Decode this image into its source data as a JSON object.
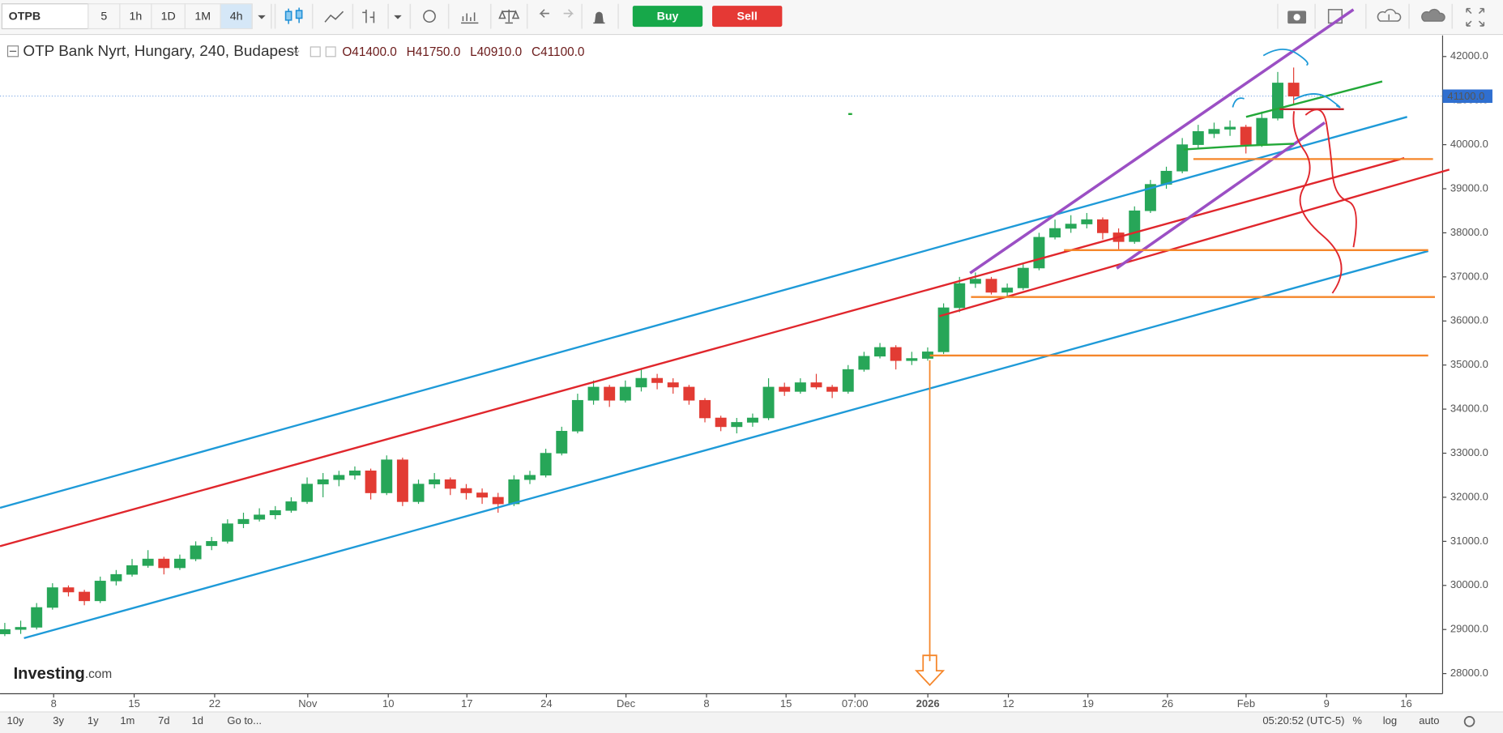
{
  "toolbar": {
    "symbol": "OTPB",
    "intervals": [
      "5",
      "1h",
      "1D",
      "1M",
      "4h"
    ],
    "buy": "Buy",
    "sell": "Sell"
  },
  "chart_data": {
    "type": "candlestick",
    "title": "OTP Bank Nyrt, Hungary, 240, Budapest",
    "ohlc_labels": [
      "O41400.0",
      "H41750.0",
      "L40910.0",
      "C41100.0"
    ],
    "last_price_label": "41100.0",
    "x": [
      0,
      1,
      2,
      3,
      4,
      5,
      6,
      7,
      8,
      9,
      10,
      11,
      12,
      13,
      14,
      15,
      16,
      17,
      18,
      19,
      20,
      21,
      22,
      23,
      24,
      25,
      26,
      27,
      28,
      29,
      30,
      31,
      32,
      33,
      34,
      35,
      36,
      37,
      38,
      39,
      40,
      41,
      42,
      43,
      44,
      45,
      46,
      47,
      48,
      49,
      50,
      51,
      52,
      53,
      54,
      55,
      56,
      57,
      58,
      59,
      60,
      61,
      62,
      63,
      64,
      65,
      66,
      67,
      68,
      69,
      70,
      71,
      72,
      73,
      74,
      75,
      76,
      77,
      78,
      79,
      80,
      81
    ],
    "open": [
      28900,
      29000,
      29050,
      29500,
      29950,
      29850,
      29650,
      30100,
      30250,
      30450,
      30600,
      30400,
      30600,
      30900,
      31000,
      31400,
      31500,
      31600,
      31700,
      31900,
      32300,
      32400,
      32500,
      32600,
      32100,
      32850,
      31900,
      32300,
      32400,
      32200,
      32100,
      32000,
      31850,
      32400,
      32500,
      33000,
      33500,
      34200,
      34500,
      34200,
      34500,
      34700,
      34600,
      34500,
      34200,
      33800,
      33600,
      33700,
      33800,
      34500,
      34400,
      34600,
      34500,
      34400,
      34900,
      35200,
      35400,
      35100,
      35150,
      35300,
      36300,
      36850,
      36950,
      36650,
      36750,
      37200,
      37900,
      38100,
      38200,
      38300,
      38000,
      37800,
      38500,
      39100,
      39400,
      40000,
      40250,
      40350,
      40400,
      40000,
      40600,
      41400
    ],
    "high": [
      29150,
      29200,
      29600,
      30050,
      30000,
      29900,
      30200,
      30350,
      30600,
      30800,
      30650,
      30700,
      31000,
      31100,
      31500,
      31650,
      31750,
      31800,
      32000,
      32450,
      32550,
      32600,
      32700,
      32650,
      32950,
      32900,
      32400,
      32550,
      32450,
      32300,
      32200,
      32100,
      32500,
      32600,
      33100,
      33600,
      34350,
      34650,
      34550,
      34650,
      34900,
      34800,
      34700,
      34550,
      34250,
      33850,
      33800,
      33900,
      34700,
      34600,
      34700,
      34800,
      34550,
      35000,
      35300,
      35500,
      35450,
      35300,
      35400,
      36400,
      37000,
      37100,
      37000,
      36850,
      37300,
      38000,
      38300,
      38400,
      38450,
      38350,
      38100,
      38600,
      39200,
      39500,
      40150,
      40450,
      40500,
      40550,
      40450,
      40750,
      41650,
      41750
    ],
    "low": [
      28850,
      28900,
      29000,
      29450,
      29750,
      29550,
      29600,
      30000,
      30200,
      30400,
      30250,
      30350,
      30550,
      30800,
      30950,
      31300,
      31450,
      31500,
      31650,
      31850,
      32000,
      32250,
      32400,
      31950,
      32050,
      31800,
      31850,
      32200,
      32050,
      31950,
      31850,
      31650,
      31800,
      32300,
      32450,
      32950,
      33450,
      34100,
      34050,
      34150,
      34400,
      34450,
      34350,
      34100,
      33700,
      33500,
      33450,
      33600,
      33750,
      34300,
      34350,
      34450,
      34250,
      34350,
      34850,
      35150,
      34900,
      35000,
      35100,
      35250,
      36200,
      36750,
      36600,
      36550,
      36700,
      37150,
      37850,
      38000,
      38100,
      37850,
      37600,
      37750,
      38450,
      39000,
      39350,
      39900,
      40150,
      40200,
      39800,
      39950,
      40550,
      40910
    ],
    "close": [
      29000,
      29050,
      29500,
      29950,
      29850,
      29650,
      30100,
      30250,
      30450,
      30600,
      30400,
      30600,
      30900,
      31000,
      31400,
      31500,
      31600,
      31700,
      31900,
      32300,
      32400,
      32500,
      32600,
      32100,
      32850,
      31900,
      32300,
      32400,
      32200,
      32100,
      32000,
      31850,
      32400,
      32500,
      33000,
      33500,
      34200,
      34500,
      34200,
      34500,
      34700,
      34600,
      34500,
      34200,
      33800,
      33600,
      33700,
      33800,
      34500,
      34400,
      34600,
      34500,
      34400,
      34900,
      35200,
      35400,
      35100,
      35150,
      35300,
      36300,
      36850,
      36950,
      36650,
      36750,
      37200,
      37900,
      38100,
      38200,
      38300,
      38000,
      37800,
      38500,
      39100,
      39400,
      40000,
      40300,
      40350,
      40400,
      40000,
      40600,
      41400,
      41100
    ],
    "up_color": "#27a658",
    "down_color": "#e23b33",
    "xlim": [
      -0.3,
      90.36
    ],
    "xticks": [
      {
        "value": 3.07,
        "label": "8"
      },
      {
        "value": 8.13,
        "label": "15"
      },
      {
        "value": 13.19,
        "label": "22"
      },
      {
        "value": 19.04,
        "label": "Nov"
      },
      {
        "value": 24.1,
        "label": "10"
      },
      {
        "value": 29.04,
        "label": "17"
      },
      {
        "value": 34.04,
        "label": "24"
      },
      {
        "value": 39.04,
        "label": "Dec"
      },
      {
        "value": 44.1,
        "label": "8"
      },
      {
        "value": 49.1,
        "label": "15"
      },
      {
        "value": 53.43,
        "label": "07:00"
      },
      {
        "value": 58.01,
        "label": "2026"
      },
      {
        "value": 63.07,
        "label": "12"
      },
      {
        "value": 68.07,
        "label": "19"
      },
      {
        "value": 73.07,
        "label": "26"
      },
      {
        "value": 78.01,
        "label": "Feb"
      },
      {
        "value": 83.07,
        "label": "9"
      },
      {
        "value": 88.07,
        "label": "16"
      }
    ],
    "ylim": [
      27543,
      42478
    ],
    "yticks": [
      {
        "value": 28000,
        "label": "28000.0"
      },
      {
        "value": 29000,
        "label": "29000.0"
      },
      {
        "value": 30000,
        "label": "30000.0"
      },
      {
        "value": 31000,
        "label": "31000.0"
      },
      {
        "value": 32000,
        "label": "32000.0"
      },
      {
        "value": 33000,
        "label": "33000.0"
      },
      {
        "value": 34000,
        "label": "34000.0"
      },
      {
        "value": 35000,
        "label": "35000.0"
      },
      {
        "value": 36000,
        "label": "36000.0"
      },
      {
        "value": 37000,
        "label": "37000.0"
      },
      {
        "value": 38000,
        "label": "38000.0"
      },
      {
        "value": 39000,
        "label": "39000.0"
      },
      {
        "value": 40000,
        "label": "40000.0"
      },
      {
        "value": 41000,
        "label": "41000.0"
      },
      {
        "value": 42000,
        "label": "42000.0"
      }
    ]
  },
  "logo": {
    "brand": "Investing",
    "suffix": ".com"
  },
  "footer": {
    "ranges": [
      "10y",
      "3y",
      "1y",
      "1m",
      "7d",
      "1d"
    ],
    "goto": "Go to...",
    "clock": "05:20:52 (UTC-5)",
    "options": [
      "%",
      "log",
      "auto"
    ]
  }
}
